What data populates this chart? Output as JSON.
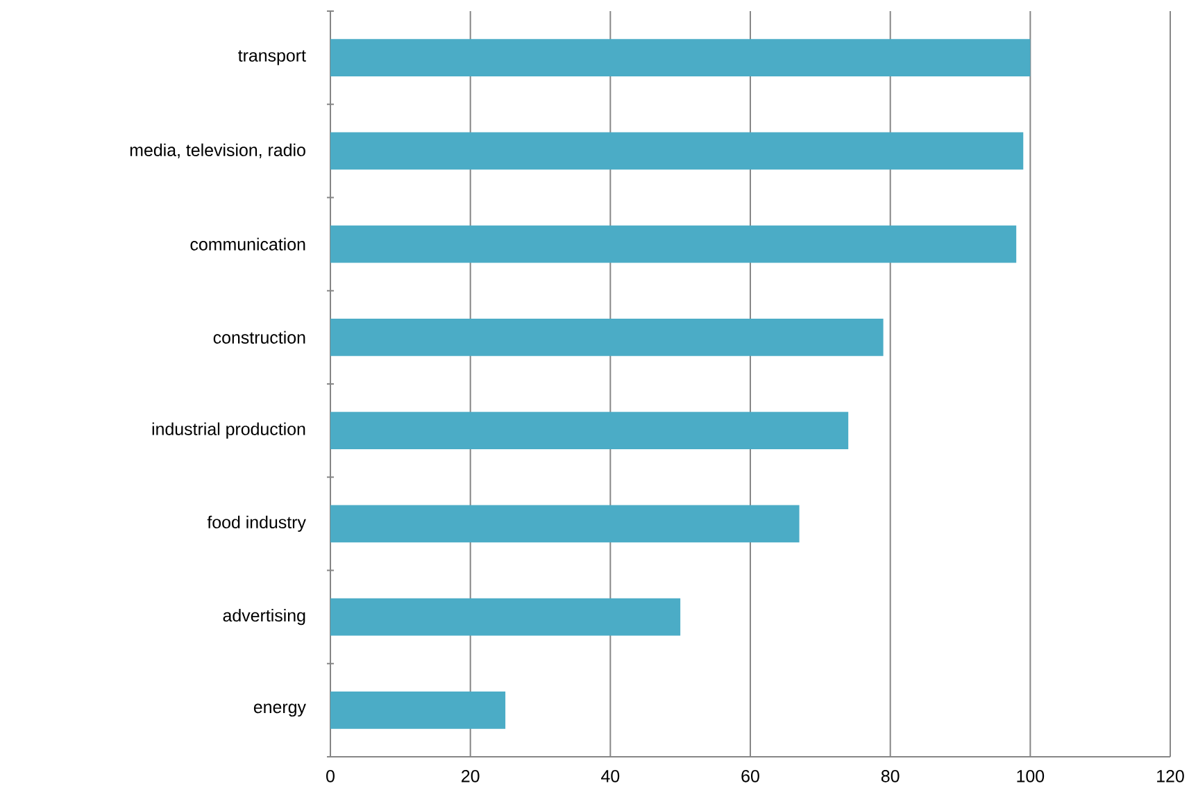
{
  "chart_data": {
    "type": "bar",
    "orientation": "horizontal",
    "categories": [
      "transport",
      "media, television, radio",
      "communication",
      "construction",
      "industrial production",
      "food industry",
      "advertising",
      "energy"
    ],
    "values": [
      100,
      99,
      98,
      79,
      74,
      67,
      50,
      25
    ],
    "color": "#4bacc6",
    "xlim": [
      0,
      120
    ],
    "xticks": [
      0,
      20,
      40,
      60,
      80,
      100,
      120
    ],
    "grid": "x"
  }
}
